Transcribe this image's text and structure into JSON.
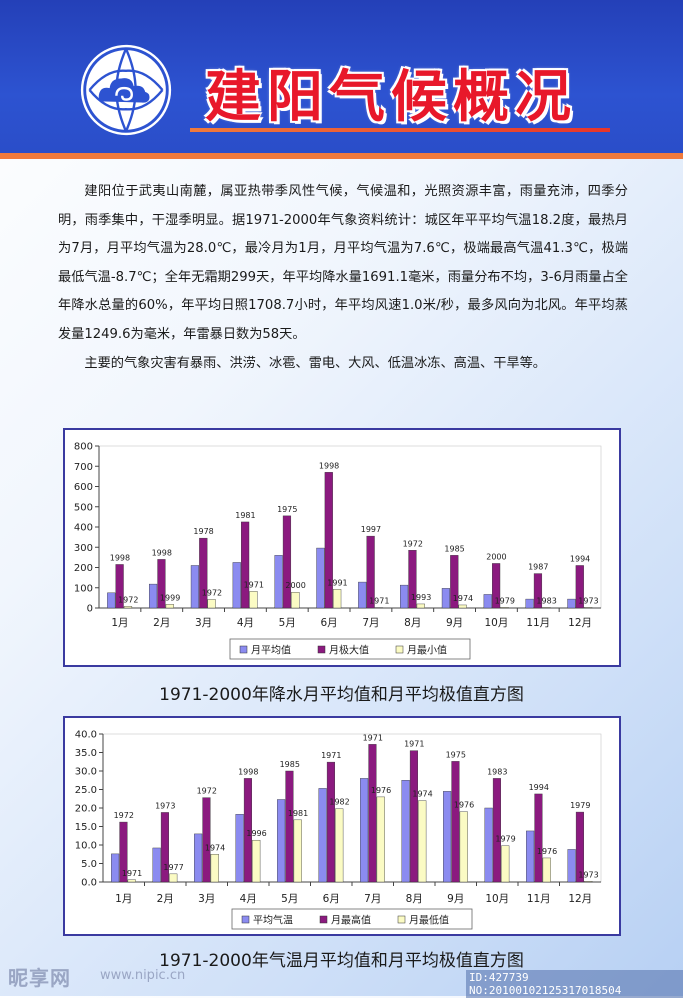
{
  "header": {
    "title": "建阳气候概况"
  },
  "intro": {
    "paragraph1": "建阳位于武夷山南麓，属亚热带季风性气候，气候温和，光照资源丰富，雨量充沛，四季分明，雨季集中，干湿季明显。据1971-2000年气象资料统计：城区年平平均气温18.2度，最热月为7月，月平均气温为28.0℃，最冷月为1月，月平均气温为7.6℃，极端最高气温41.3℃，极端最低气温-8.7℃；全年无霜期299天，年平均降水量1691.1毫米，雨量分布不均，3-6月雨量占全年降水总量的60%，年平均日照1708.7小时，年平均风速1.0米/秒，最多风向为北风。年平均蒸发量1249.6为毫米，年雷暴日数为58天。",
    "paragraph2": "主要的气象灾害有暴雨、洪涝、冰雹、雷电、大风、低温冰冻、高温、干旱等。"
  },
  "watermark": {
    "logo_text": "昵享网",
    "site": "www.nipic.cn",
    "id": "ID:427739 NO:20100102125317018504"
  },
  "colors": {
    "series_avg": "#8b8bf0",
    "series_max": "#8b1a7f",
    "series_min": "#fbfbc4",
    "header_blue": "#2d53d1",
    "title_red": "#e8182a",
    "accent_orange": "#f07a3c"
  },
  "chart_data": [
    {
      "type": "bar",
      "caption": "1971-2000年降水月平均值和月平均极值直方图",
      "categories": [
        "1月",
        "2月",
        "3月",
        "4月",
        "5月",
        "6月",
        "7月",
        "8月",
        "9月",
        "10月",
        "11月",
        "12月"
      ],
      "ylim": [
        0,
        800
      ],
      "yticks": [
        "0",
        "100",
        "200",
        "300",
        "400",
        "500",
        "600",
        "700",
        "800"
      ],
      "grid": false,
      "legend_position": "bottom",
      "series": [
        {
          "name": "月平均值",
          "values": [
            75,
            118,
            210,
            225,
            260,
            296,
            128,
            113,
            97,
            67,
            44,
            44
          ]
        },
        {
          "name": "月极大值",
          "values": [
            215,
            240,
            345,
            425,
            455,
            670,
            355,
            285,
            260,
            220,
            170,
            210
          ],
          "labels": [
            "1998",
            "1998",
            "1978",
            "1981",
            "1975",
            "1998",
            "1997",
            "1972",
            "1985",
            "2000",
            "1987",
            "1994"
          ]
        },
        {
          "name": "月最小值",
          "values": [
            8,
            18,
            42,
            82,
            78,
            92,
            2,
            20,
            15,
            3,
            3,
            3
          ],
          "labels": [
            "1972",
            "1999",
            "1972",
            "1971",
            "2000",
            "1991",
            "1971",
            "1993",
            "1974",
            "1979",
            "1983",
            "1973"
          ]
        }
      ]
    },
    {
      "type": "bar",
      "caption": "1971-2000年气温月平均值和月平均极值直方图",
      "categories": [
        "1月",
        "2月",
        "3月",
        "4月",
        "5月",
        "6月",
        "7月",
        "8月",
        "9月",
        "10月",
        "11月",
        "12月"
      ],
      "ylim": [
        0,
        40
      ],
      "yticks": [
        "0.0",
        "5.0",
        "10.0",
        "15.0",
        "20.0",
        "25.0",
        "30.0",
        "35.0",
        "40.0"
      ],
      "grid": false,
      "legend_position": "bottom",
      "series": [
        {
          "name": "平均气温",
          "values": [
            7.6,
            9.2,
            13.0,
            18.3,
            22.3,
            25.3,
            28.0,
            27.5,
            24.5,
            20.0,
            13.8,
            8.8
          ]
        },
        {
          "name": "月最高值",
          "values": [
            16.2,
            18.8,
            22.8,
            28.0,
            30.0,
            32.4,
            37.2,
            35.5,
            32.6,
            28.0,
            23.8,
            18.9
          ],
          "labels": [
            "1972",
            "1973",
            "1972",
            "1998",
            "1985",
            "1971",
            "1971",
            "1971",
            "1975",
            "1983",
            "1994",
            "1979"
          ]
        },
        {
          "name": "月最低值",
          "values": [
            0.6,
            2.2,
            7.5,
            11.3,
            16.8,
            19.8,
            23.0,
            22.0,
            19.0,
            9.8,
            6.5,
            0.2
          ],
          "labels": [
            "1971",
            "1977",
            "1974",
            "1996",
            "1981",
            "1982",
            "1976",
            "1974",
            "1976",
            "1979",
            "1976",
            "1973"
          ]
        }
      ]
    }
  ]
}
